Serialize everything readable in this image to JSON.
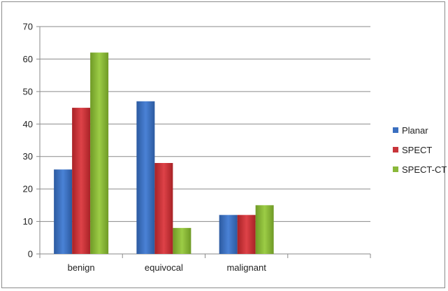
{
  "chart_data": {
    "type": "bar",
    "title": "",
    "xlabel": "",
    "ylabel": "",
    "categories": [
      "benign",
      "equivocal",
      "malignant"
    ],
    "series": [
      {
        "name": "Planar",
        "values": [
          26,
          47,
          12
        ],
        "color": "#3a6fc0"
      },
      {
        "name": "SPECT",
        "values": [
          45,
          28,
          12
        ],
        "color": "#c8343a"
      },
      {
        "name": "SPECT-CT",
        "values": [
          62,
          8,
          15
        ],
        "color": "#8ab83a"
      }
    ],
    "ylim": [
      0,
      70
    ],
    "yticks": [
      0,
      10,
      20,
      30,
      40,
      50,
      60,
      70
    ],
    "grid": true,
    "legend_position": "right",
    "empty_trailing_category_slots": 1
  }
}
